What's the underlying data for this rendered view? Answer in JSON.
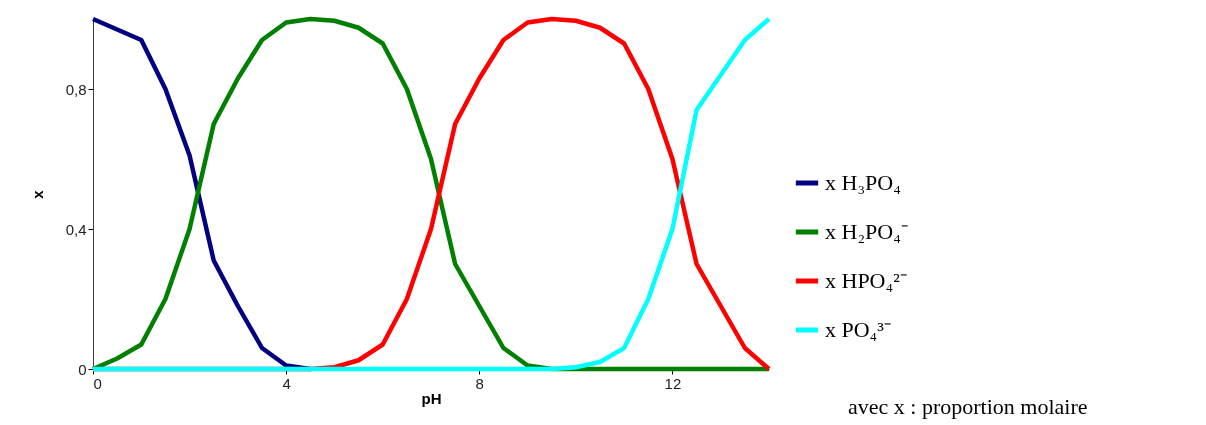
{
  "chart_data": {
    "type": "line",
    "xlabel": "pH",
    "ylabel": "x",
    "xlim": [
      0,
      14
    ],
    "xticks": [
      0,
      4,
      8,
      12
    ],
    "ylim": [
      0,
      1
    ],
    "yticks": [
      0,
      {
        "value": 0.4,
        "label": "0,4"
      },
      {
        "value": 0.8,
        "label": "0,8"
      }
    ],
    "grid": false,
    "legend": "right",
    "line_style": "solid",
    "annotations": [
      "avec x : proportion molaire"
    ],
    "series": [
      {
        "name": "x H₃PO₄",
        "color": "#000080",
        "x": [
          0,
          0.5,
          1,
          1.5,
          2,
          2.5,
          3,
          3.5,
          4,
          4.5
        ],
        "values": [
          1.0,
          0.97,
          0.94,
          0.8,
          0.61,
          0.31,
          0.18,
          0.06,
          0.01,
          0
        ]
      },
      {
        "name": "x H₂PO₄⁻",
        "color": "#008000",
        "x": [
          0,
          0.5,
          1,
          1.5,
          2,
          2.5,
          3,
          3.5,
          4,
          4.5,
          5,
          5.5,
          6,
          6.5,
          7,
          7.5,
          8,
          8.5,
          9,
          9.5,
          14
        ],
        "values": [
          0,
          0.03,
          0.07,
          0.2,
          0.4,
          0.7,
          0.83,
          0.94,
          0.99,
          1.0,
          0.995,
          0.975,
          0.93,
          0.8,
          0.6,
          0.3,
          0.18,
          0.06,
          0.01,
          0,
          0
        ]
      },
      {
        "name": "x HPO₄²⁻",
        "color": "#ff0000",
        "x": [
          0,
          4.5,
          5,
          5.5,
          6,
          6.5,
          7,
          7.5,
          8,
          8.5,
          9,
          9.5,
          10,
          10.5,
          11,
          11.5,
          12,
          12.5,
          13,
          13.5,
          14
        ],
        "values": [
          0,
          0,
          0.005,
          0.025,
          0.07,
          0.2,
          0.4,
          0.7,
          0.83,
          0.94,
          0.99,
          1.0,
          0.995,
          0.975,
          0.93,
          0.8,
          0.6,
          0.3,
          0.18,
          0.06,
          0
        ]
      },
      {
        "name": "x PO₄³⁻",
        "color": "#00ffff",
        "x": [
          0,
          9.5,
          10,
          10.5,
          11,
          11.5,
          12,
          12.5,
          13,
          13.5,
          14
        ],
        "values": [
          0,
          0,
          0.005,
          0.02,
          0.06,
          0.2,
          0.4,
          0.74,
          0.84,
          0.94,
          1.0
        ]
      }
    ]
  }
}
